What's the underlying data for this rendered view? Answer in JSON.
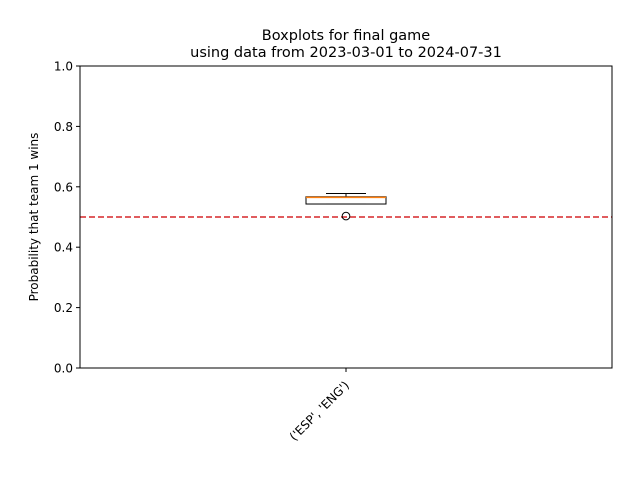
{
  "chart_data": {
    "type": "boxplot",
    "title_line1": "Boxplots for final game",
    "title_line2": "using data from 2023-03-01 to 2024-07-31",
    "ylabel": "Probability that team 1 wins",
    "ylim": [
      0,
      1
    ],
    "yticks": [
      "0.0",
      "0.2",
      "0.4",
      "0.6",
      "0.8",
      "1.0"
    ],
    "grid": false,
    "reference_line": {
      "y": 0.5,
      "color": "#d62728",
      "style": "dashed"
    },
    "categories": [
      "('ESP', 'ENG')"
    ],
    "boxes": [
      {
        "category": "('ESP', 'ENG')",
        "whisker_low": 0.543,
        "q1": 0.543,
        "median": 0.565,
        "q3": 0.567,
        "whisker_high": 0.578,
        "outliers": [
          0.503
        ]
      }
    ],
    "colors": {
      "box": "#000000",
      "median": "#ff7f0e",
      "flier": "#000000"
    }
  }
}
